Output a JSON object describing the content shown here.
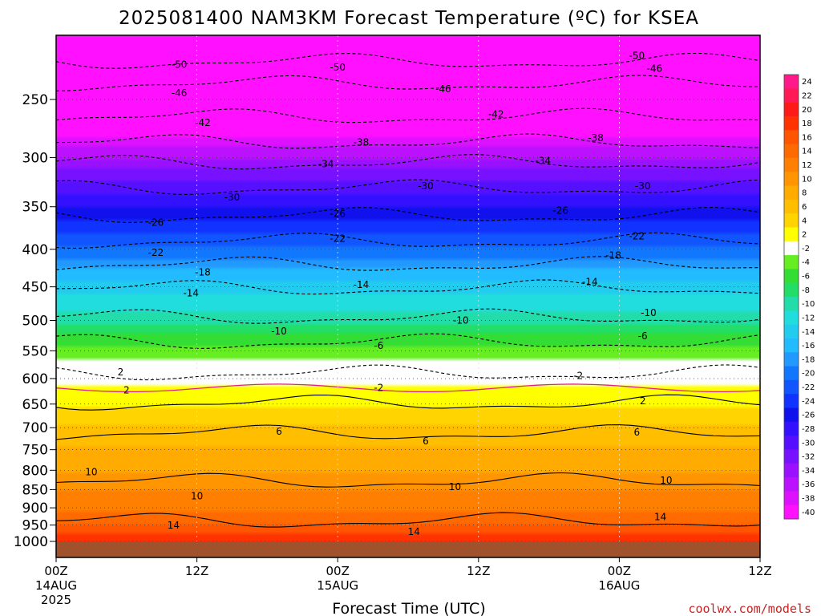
{
  "title": "2025081400 NAM3KM Forecast Temperature (ºC) for KSEA",
  "credit": "coolwx.com/models",
  "chart_data": {
    "type": "heatmap",
    "title": "2025081400 NAM3KM Forecast Temperature (ºC) for KSEA",
    "xlabel": "Forecast Time (UTC)",
    "ylabel": "",
    "x_range_hours": [
      0,
      60
    ],
    "y_scale": "log",
    "y_range_hPa": [
      1000,
      200
    ],
    "x_ticks": [
      {
        "hour": 0,
        "label": "00Z",
        "date": "14AUG",
        "year": "2025"
      },
      {
        "hour": 12,
        "label": "12Z"
      },
      {
        "hour": 24,
        "label": "00Z",
        "date": "15AUG"
      },
      {
        "hour": 36,
        "label": "12Z"
      },
      {
        "hour": 48,
        "label": "00Z",
        "date": "16AUG"
      },
      {
        "hour": 60,
        "label": "12Z"
      }
    ],
    "y_ticks": [
      250,
      300,
      350,
      400,
      450,
      500,
      550,
      600,
      650,
      700,
      750,
      800,
      850,
      900,
      950,
      1000
    ],
    "colorbar": {
      "labels": [
        "24",
        "22",
        "20",
        "18",
        "16",
        "14",
        "12",
        "10",
        "8",
        "6",
        "4",
        "2",
        "-2",
        "-4",
        "-6",
        "-8",
        "-10",
        "-12",
        "-14",
        "-16",
        "-18",
        "-20",
        "-22",
        "-24",
        "-26",
        "-28",
        "-30",
        "-32",
        "-34",
        "-36",
        "-38",
        "-40"
      ],
      "colors": [
        "#ff1a8c",
        "#ff1a55",
        "#ff1a1a",
        "#ff3300",
        "#ff5500",
        "#ff6a00",
        "#ff7f00",
        "#ff9500",
        "#ffab00",
        "#ffbf00",
        "#ffd400",
        "#ffff00",
        "#ffffff",
        "#66ee22",
        "#33dd33",
        "#22dd66",
        "#22ddaa",
        "#22dddd",
        "#22ccee",
        "#22bbff",
        "#2299ff",
        "#1177ff",
        "#1155ff",
        "#1133ff",
        "#1111ee",
        "#3311ff",
        "#5511ff",
        "#7711ff",
        "#9911ff",
        "#bb11ff",
        "#dd11ff",
        "#ff11ff"
      ]
    },
    "contour_labels": [
      {
        "value": "-50",
        "h": 10.5,
        "p": 224
      },
      {
        "value": "-50",
        "h": 24.0,
        "p": 226
      },
      {
        "value": "-50",
        "h": 49.5,
        "p": 218
      },
      {
        "value": "-46",
        "h": 10.5,
        "p": 245
      },
      {
        "value": "-46",
        "h": 33.0,
        "p": 242
      },
      {
        "value": "-46",
        "h": 51.0,
        "p": 227
      },
      {
        "value": "-42",
        "h": 12.5,
        "p": 269
      },
      {
        "value": "-42",
        "h": 37.5,
        "p": 262
      },
      {
        "value": "-38",
        "h": 26.0,
        "p": 286
      },
      {
        "value": "-38",
        "h": 46.0,
        "p": 282
      },
      {
        "value": "-34",
        "h": 23.0,
        "p": 306
      },
      {
        "value": "-34",
        "h": 41.5,
        "p": 303
      },
      {
        "value": "-30",
        "h": 15.0,
        "p": 340
      },
      {
        "value": "-30",
        "h": 31.5,
        "p": 328
      },
      {
        "value": "-30",
        "h": 50.0,
        "p": 328
      },
      {
        "value": "-26",
        "h": 8.5,
        "p": 368
      },
      {
        "value": "-26",
        "h": 24.0,
        "p": 358
      },
      {
        "value": "-26",
        "h": 43.0,
        "p": 354
      },
      {
        "value": "-22",
        "h": 8.5,
        "p": 404
      },
      {
        "value": "-22",
        "h": 24.0,
        "p": 387
      },
      {
        "value": "-22",
        "h": 49.5,
        "p": 384
      },
      {
        "value": "-18",
        "h": 12.5,
        "p": 430
      },
      {
        "value": "-18",
        "h": 47.5,
        "p": 408
      },
      {
        "value": "-14",
        "h": 11.5,
        "p": 459
      },
      {
        "value": "-14",
        "h": 26.0,
        "p": 447
      },
      {
        "value": "-14",
        "h": 45.5,
        "p": 443
      },
      {
        "value": "-10",
        "h": 19.0,
        "p": 517
      },
      {
        "value": "-10",
        "h": 34.5,
        "p": 500
      },
      {
        "value": "-10",
        "h": 50.5,
        "p": 488
      },
      {
        "value": "-6",
        "h": 27.5,
        "p": 541
      },
      {
        "value": "-6",
        "h": 50.0,
        "p": 525
      },
      {
        "value": "-2",
        "h": 27.5,
        "p": 618
      },
      {
        "value": "-2",
        "h": 44.5,
        "p": 595
      },
      {
        "value": "2",
        "h": 5.5,
        "p": 588
      },
      {
        "value": "2",
        "h": 6.0,
        "p": 622
      },
      {
        "value": "2",
        "h": 50.0,
        "p": 644
      },
      {
        "value": "6",
        "h": 19.0,
        "p": 708
      },
      {
        "value": "6",
        "h": 31.5,
        "p": 730
      },
      {
        "value": "6",
        "h": 49.5,
        "p": 710
      },
      {
        "value": "10",
        "h": 3.0,
        "p": 804
      },
      {
        "value": "10",
        "h": 12.0,
        "p": 867
      },
      {
        "value": "10",
        "h": 34.0,
        "p": 843
      },
      {
        "value": "10",
        "h": 52.0,
        "p": 826
      },
      {
        "value": "14",
        "h": 10.0,
        "p": 951
      },
      {
        "value": "14",
        "h": 30.5,
        "p": 970
      },
      {
        "value": "14",
        "h": 51.5,
        "p": 926
      }
    ]
  }
}
